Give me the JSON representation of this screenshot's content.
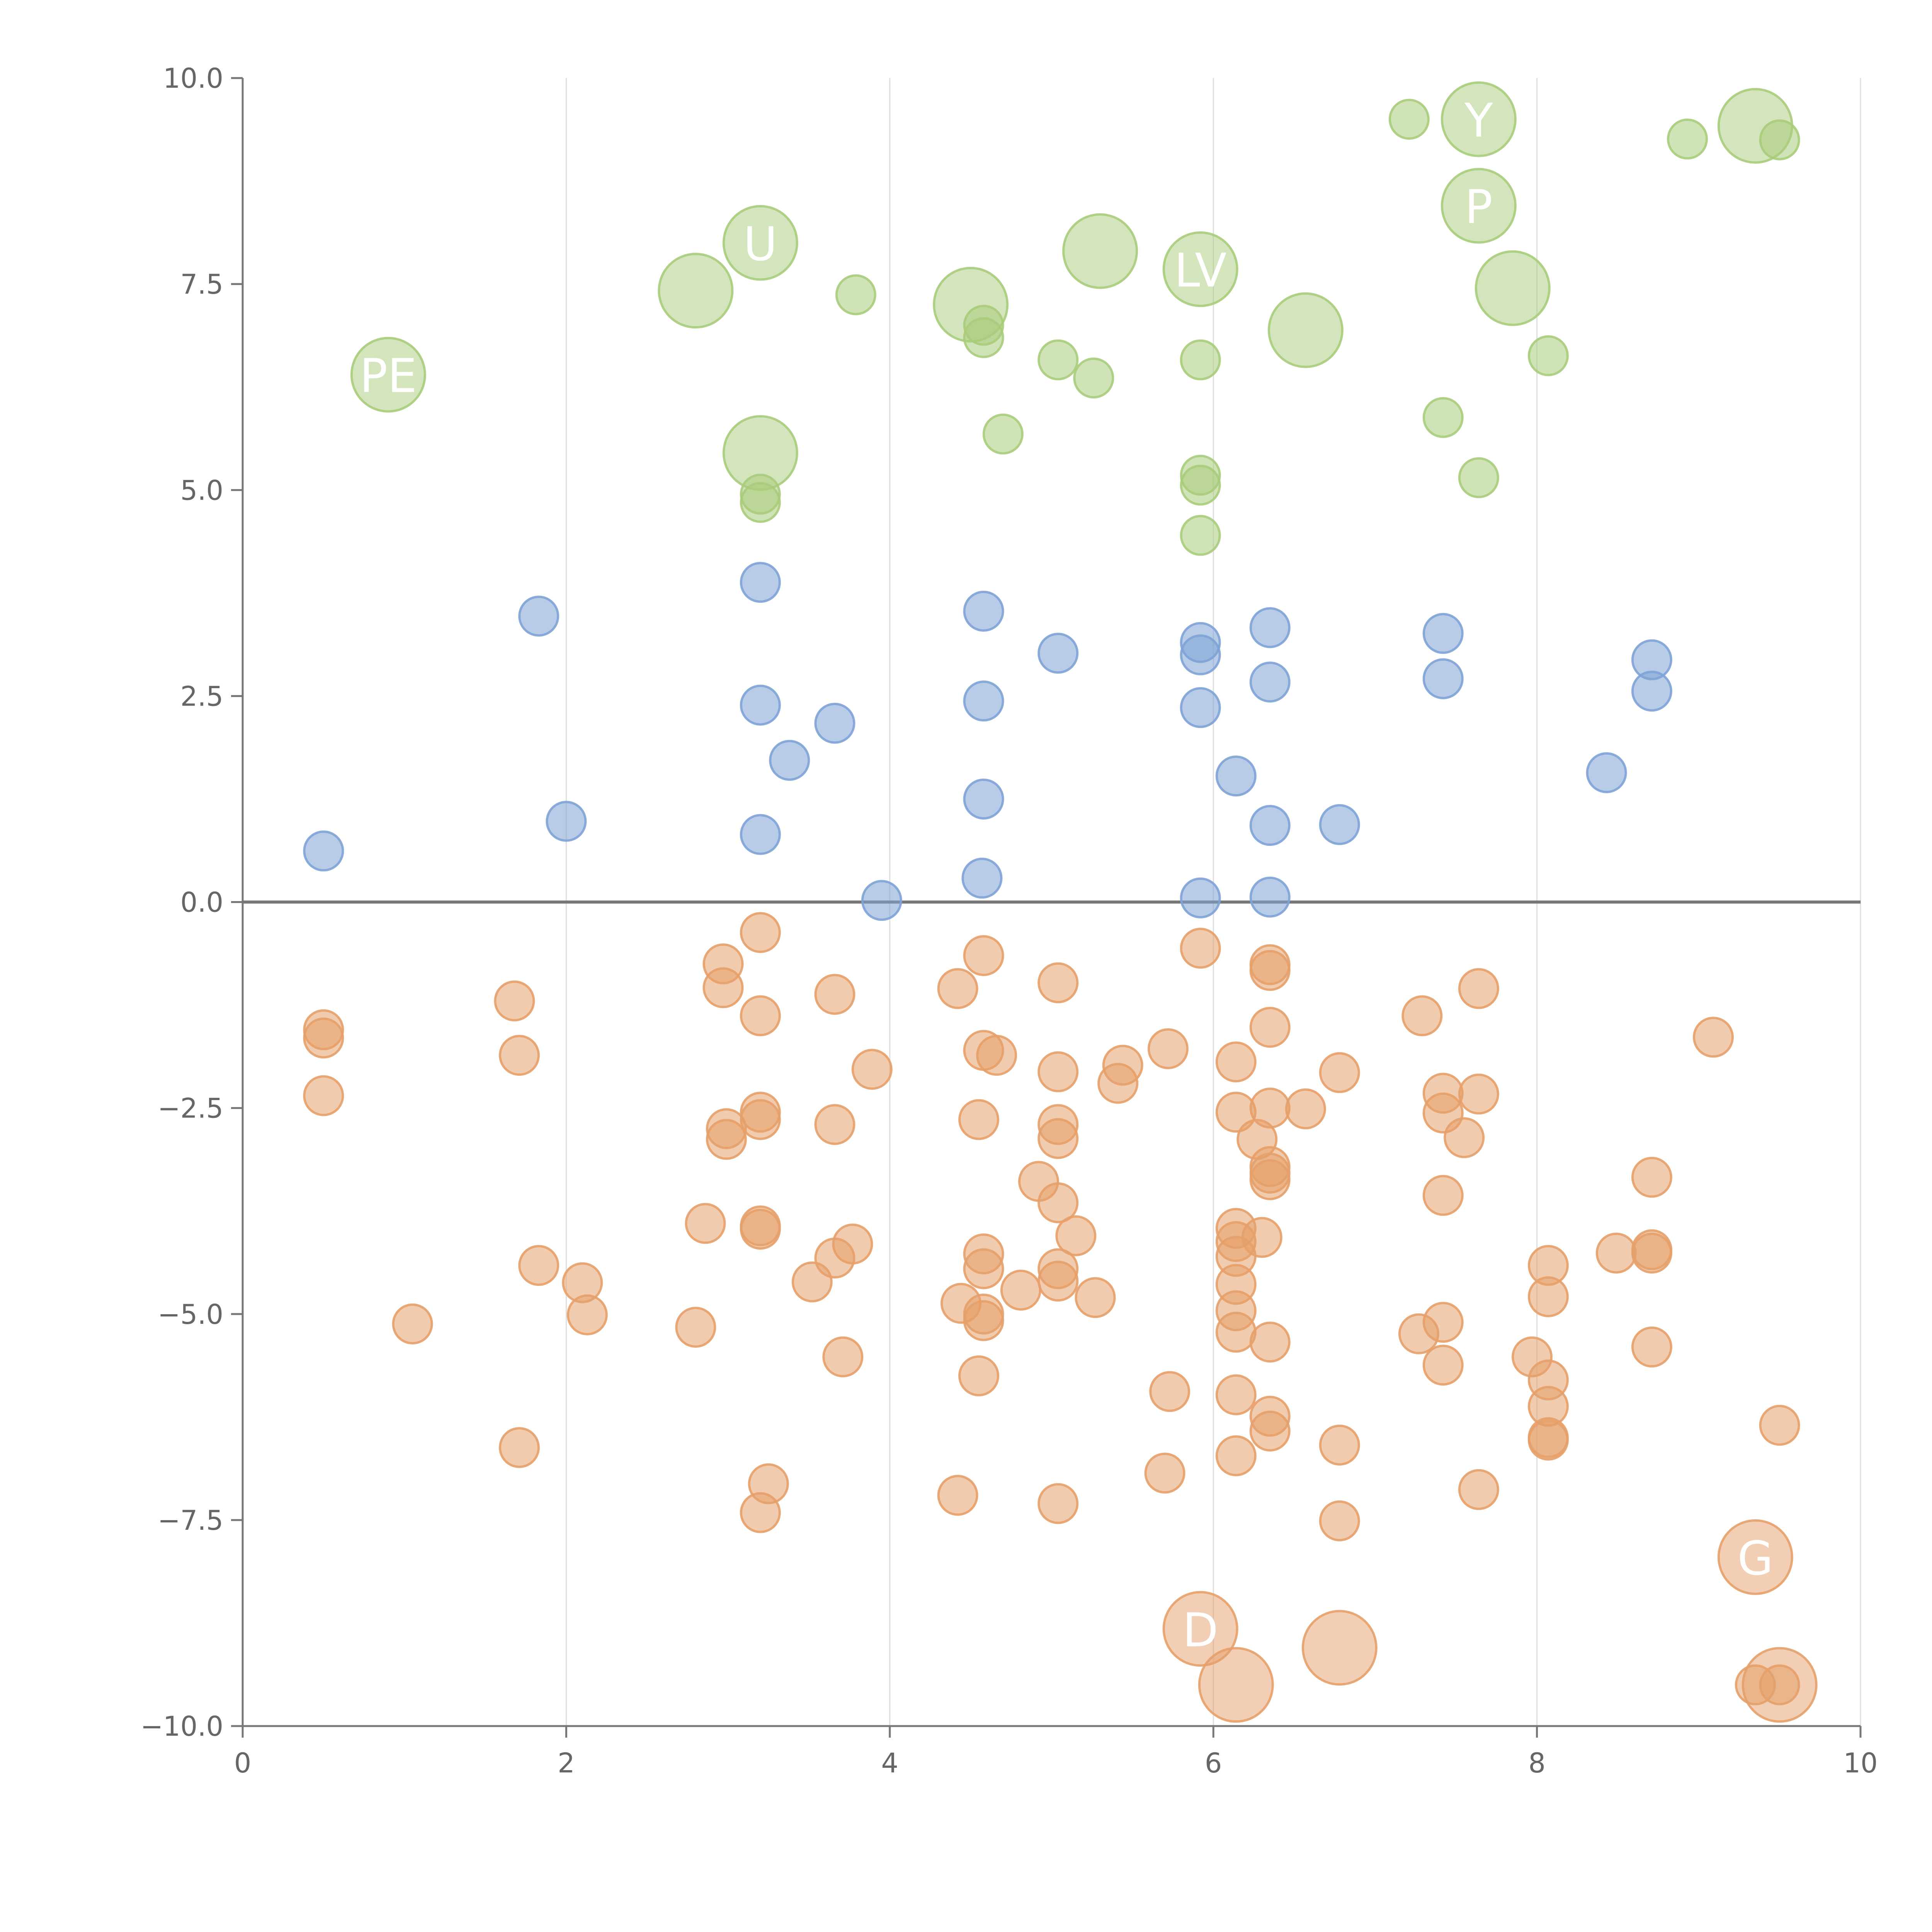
{
  "chart_data": {
    "type": "scatter",
    "title": "",
    "xlabel": "",
    "ylabel": "",
    "xlim": [
      0,
      10
    ],
    "ylim": [
      -10,
      10
    ],
    "grid": "vertical",
    "x_ticks": [
      "0",
      "2",
      "4",
      "6",
      "8",
      "10"
    ],
    "y_ticks": [
      "−10.0",
      "−7.5",
      "−5.0",
      "−2.5",
      "0.0",
      "2.5",
      "5.0",
      "7.5",
      "10.0"
    ],
    "colors": {
      "blue": "#7ea3d6",
      "green": "#a9cc7b",
      "orange": "#e6a06a"
    },
    "series": [
      {
        "color_key": "blue",
        "points": [
          [
            0.5,
            0.62
          ],
          [
            1.83,
            3.47
          ],
          [
            2.0,
            0.98
          ],
          [
            3.2,
            3.88
          ],
          [
            3.2,
            2.39
          ],
          [
            3.2,
            0.82
          ],
          [
            3.38,
            1.72
          ],
          [
            3.66,
            2.17
          ],
          [
            3.95,
            0.02
          ],
          [
            4.58,
            3.53
          ],
          [
            4.58,
            2.44
          ],
          [
            4.58,
            1.25
          ],
          [
            4.57,
            0.29
          ],
          [
            5.04,
            3.02
          ],
          [
            5.92,
            3.15
          ],
          [
            5.92,
            3.0
          ],
          [
            5.92,
            2.36
          ],
          [
            5.92,
            0.05
          ],
          [
            6.14,
            1.53
          ],
          [
            6.35,
            3.33
          ],
          [
            6.35,
            2.67
          ],
          [
            6.35,
            0.93
          ],
          [
            6.35,
            0.06
          ],
          [
            6.78,
            0.94
          ],
          [
            7.42,
            3.26
          ],
          [
            7.42,
            2.71
          ],
          [
            8.43,
            1.57
          ],
          [
            8.71,
            2.94
          ],
          [
            8.71,
            2.56
          ]
        ]
      },
      {
        "color_key": "green",
        "points": [
          [
            3.2,
            4.95
          ],
          [
            3.2,
            4.85
          ],
          [
            3.79,
            7.37
          ],
          [
            4.58,
            7.0
          ],
          [
            4.58,
            6.85
          ],
          [
            4.7,
            5.68
          ],
          [
            5.04,
            6.58
          ],
          [
            5.26,
            6.36
          ],
          [
            5.92,
            6.58
          ],
          [
            5.92,
            5.18
          ],
          [
            5.92,
            5.06
          ],
          [
            5.92,
            4.45
          ],
          [
            7.21,
            9.5
          ],
          [
            7.42,
            5.88
          ],
          [
            7.64,
            5.15
          ],
          [
            8.07,
            6.63
          ],
          [
            8.93,
            9.26
          ],
          [
            9.5,
            9.25
          ]
        ]
      },
      {
        "color_key": "orange",
        "points": [
          [
            0.5,
            -1.55
          ],
          [
            0.5,
            -1.65
          ],
          [
            0.5,
            -2.35
          ],
          [
            1.05,
            -5.12
          ],
          [
            1.68,
            -1.2
          ],
          [
            1.71,
            -1.86
          ],
          [
            1.71,
            -6.62
          ],
          [
            1.83,
            -4.41
          ],
          [
            2.1,
            -4.62
          ],
          [
            2.13,
            -5.01
          ],
          [
            2.8,
            -5.16
          ],
          [
            2.86,
            -3.9
          ],
          [
            2.97,
            -0.75
          ],
          [
            2.97,
            -1.04
          ],
          [
            2.99,
            -2.75
          ],
          [
            2.99,
            -2.88
          ],
          [
            3.2,
            -0.37
          ],
          [
            3.2,
            -1.38
          ],
          [
            3.2,
            -2.55
          ],
          [
            3.2,
            -2.64
          ],
          [
            3.2,
            -3.93
          ],
          [
            3.2,
            -3.97
          ],
          [
            3.25,
            -7.06
          ],
          [
            3.2,
            -7.41
          ],
          [
            3.52,
            -4.61
          ],
          [
            3.66,
            -1.12
          ],
          [
            3.66,
            -2.7
          ],
          [
            3.66,
            -4.32
          ],
          [
            3.71,
            -5.52
          ],
          [
            3.77,
            -4.15
          ],
          [
            3.89,
            -2.03
          ],
          [
            4.42,
            -1.05
          ],
          [
            4.44,
            -4.87
          ],
          [
            4.42,
            -7.2
          ],
          [
            4.55,
            -5.75
          ],
          [
            4.55,
            -2.64
          ],
          [
            4.58,
            -0.65
          ],
          [
            4.58,
            -1.8
          ],
          [
            4.58,
            -4.27
          ],
          [
            4.58,
            -4.45
          ],
          [
            4.58,
            -5.0
          ],
          [
            4.58,
            -5.08
          ],
          [
            4.66,
            -1.86
          ],
          [
            4.81,
            -4.71
          ],
          [
            4.92,
            -3.39
          ],
          [
            5.04,
            -0.98
          ],
          [
            5.04,
            -2.06
          ],
          [
            5.04,
            -2.7
          ],
          [
            5.04,
            -2.87
          ],
          [
            5.04,
            -3.65
          ],
          [
            5.04,
            -4.45
          ],
          [
            5.04,
            -4.6
          ],
          [
            5.04,
            -7.3
          ],
          [
            5.15,
            -4.05
          ],
          [
            5.27,
            -4.8
          ],
          [
            5.41,
            -2.2
          ],
          [
            5.44,
            -1.98
          ],
          [
            5.7,
            -6.93
          ],
          [
            5.73,
            -5.94
          ],
          [
            5.72,
            -1.78
          ],
          [
            5.92,
            -0.56
          ],
          [
            6.14,
            -1.94
          ],
          [
            6.14,
            -2.55
          ],
          [
            6.14,
            -3.96
          ],
          [
            6.14,
            -4.12
          ],
          [
            6.14,
            -4.3
          ],
          [
            6.14,
            -4.64
          ],
          [
            6.14,
            -4.96
          ],
          [
            6.14,
            -5.22
          ],
          [
            6.14,
            -5.98
          ],
          [
            6.14,
            -6.72
          ],
          [
            6.27,
            -2.88
          ],
          [
            6.3,
            -4.07
          ],
          [
            6.35,
            -0.76
          ],
          [
            6.35,
            -0.83
          ],
          [
            6.35,
            -1.52
          ],
          [
            6.35,
            -2.5
          ],
          [
            6.35,
            -3.21
          ],
          [
            6.35,
            -3.29
          ],
          [
            6.35,
            -3.37
          ],
          [
            6.35,
            -5.34
          ],
          [
            6.35,
            -6.24
          ],
          [
            6.35,
            -6.42
          ],
          [
            6.57,
            -2.51
          ],
          [
            6.78,
            -2.07
          ],
          [
            6.78,
            -6.59
          ],
          [
            6.78,
            -7.51
          ],
          [
            7.29,
            -1.38
          ],
          [
            7.27,
            -5.24
          ],
          [
            7.42,
            -2.32
          ],
          [
            7.42,
            -2.56
          ],
          [
            7.42,
            -3.56
          ],
          [
            7.42,
            -5.1
          ],
          [
            7.42,
            -5.62
          ],
          [
            7.55,
            -2.86
          ],
          [
            7.64,
            -1.05
          ],
          [
            7.64,
            -2.33
          ],
          [
            7.64,
            -7.13
          ],
          [
            7.97,
            -5.52
          ],
          [
            8.07,
            -4.41
          ],
          [
            8.07,
            -4.79
          ],
          [
            8.07,
            -5.8
          ],
          [
            8.07,
            -6.12
          ],
          [
            8.07,
            -6.5
          ],
          [
            8.07,
            -6.53
          ],
          [
            8.49,
            -4.26
          ],
          [
            8.71,
            -3.34
          ],
          [
            8.71,
            -4.22
          ],
          [
            8.71,
            -4.26
          ],
          [
            8.71,
            -5.4
          ],
          [
            9.09,
            -1.64
          ],
          [
            9.35,
            -9.5
          ],
          [
            9.5,
            -9.5
          ],
          [
            9.5,
            -6.35
          ]
        ]
      }
    ],
    "bubbles": [
      {
        "color_key": "green",
        "x": 0.9,
        "y": 6.4,
        "label": "PE"
      },
      {
        "color_key": "green",
        "x": 2.8,
        "y": 7.42,
        "label": ""
      },
      {
        "color_key": "green",
        "x": 3.2,
        "y": 8.0,
        "label": "U"
      },
      {
        "color_key": "green",
        "x": 3.2,
        "y": 5.45,
        "label": ""
      },
      {
        "color_key": "green",
        "x": 4.5,
        "y": 7.25,
        "label": ""
      },
      {
        "color_key": "green",
        "x": 5.3,
        "y": 7.9,
        "label": ""
      },
      {
        "color_key": "green",
        "x": 5.92,
        "y": 7.68,
        "label": "LV"
      },
      {
        "color_key": "green",
        "x": 6.57,
        "y": 6.94,
        "label": ""
      },
      {
        "color_key": "green",
        "x": 7.64,
        "y": 9.5,
        "label": "Y"
      },
      {
        "color_key": "green",
        "x": 7.64,
        "y": 8.45,
        "label": "P"
      },
      {
        "color_key": "green",
        "x": 7.85,
        "y": 7.45,
        "label": ""
      },
      {
        "color_key": "green",
        "x": 9.35,
        "y": 9.42,
        "label": ""
      },
      {
        "color_key": "orange",
        "x": 5.92,
        "y": -8.82,
        "label": "D"
      },
      {
        "color_key": "orange",
        "x": 6.14,
        "y": -9.5,
        "label": ""
      },
      {
        "color_key": "orange",
        "x": 6.78,
        "y": -9.05,
        "label": ""
      },
      {
        "color_key": "orange",
        "x": 9.35,
        "y": -7.95,
        "label": "G"
      },
      {
        "color_key": "orange",
        "x": 9.5,
        "y": -9.5,
        "label": ""
      }
    ]
  }
}
